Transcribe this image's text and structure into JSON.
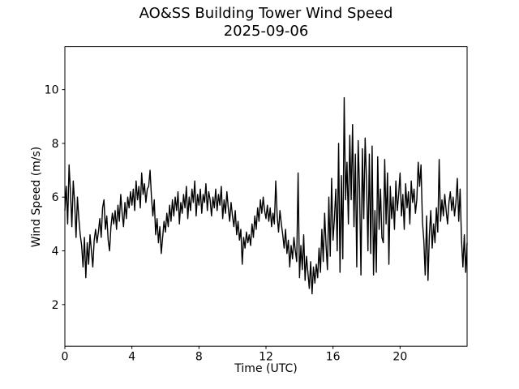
{
  "chart_data": {
    "type": "line",
    "title": "AO&SS Building Tower Wind Speed",
    "subtitle": "2025-09-06",
    "xlabel": "Time (UTC)",
    "ylabel": "Wind Speed (m/s)",
    "xlim": [
      0,
      24
    ],
    "ylim": [
      0.45,
      11.6
    ],
    "xticks": [
      0,
      4,
      8,
      12,
      16,
      20
    ],
    "yticks": [
      2,
      4,
      6,
      8,
      10
    ],
    "grid": false,
    "legend": "none",
    "line_color": "#000000",
    "line_width": 1.4,
    "background_color": "#ffffff",
    "text_color": "#000000",
    "series": [
      {
        "name": "wind-speed",
        "x_start": 0,
        "x_step": 0.0833333,
        "y": [
          5.5,
          6.4,
          5.0,
          7.2,
          6.2,
          4.9,
          6.6,
          5.8,
          4.5,
          6.0,
          5.2,
          4.6,
          4.2,
          3.4,
          4.5,
          3.0,
          4.3,
          3.5,
          4.6,
          4.0,
          3.4,
          4.4,
          4.8,
          4.3,
          4.7,
          5.2,
          4.5,
          5.6,
          5.9,
          4.8,
          5.3,
          4.4,
          4.0,
          4.9,
          5.4,
          5.0,
          5.5,
          4.8,
          5.7,
          5.1,
          6.1,
          5.4,
          4.9,
          5.8,
          5.2,
          6.0,
          5.6,
          6.2,
          5.7,
          6.3,
          5.5,
          6.6,
          5.9,
          6.4,
          5.6,
          6.9,
          6.1,
          6.5,
          5.8,
          6.3,
          6.4,
          7.0,
          6.0,
          5.3,
          5.9,
          4.6,
          5.2,
          4.3,
          4.9,
          3.9,
          4.5,
          5.1,
          4.7,
          5.4,
          4.9,
          5.7,
          5.1,
          5.9,
          5.3,
          6.0,
          5.5,
          6.2,
          5.0,
          5.8,
          5.4,
          6.1,
          5.6,
          6.4,
          5.2,
          6.0,
          5.5,
          6.3,
          5.8,
          6.6,
          5.3,
          6.1,
          5.7,
          6.3,
          5.4,
          6.1,
          5.8,
          6.5,
          5.5,
          6.2,
          5.9,
          5.3,
          6.0,
          5.6,
          6.3,
          5.5,
          6.1,
          5.7,
          6.4,
          5.2,
          5.9,
          5.4,
          6.2,
          5.6,
          5.1,
          5.8,
          5.3,
          4.9,
          5.5,
          4.6,
          5.1,
          4.4,
          4.8,
          3.5,
          4.5,
          4.1,
          4.7,
          4.3,
          4.6,
          4.2,
          5.0,
          4.5,
          5.3,
          4.8,
          5.6,
          5.1,
          5.9,
          5.4,
          6.0,
          5.5,
          5.2,
          5.7,
          5.1,
          5.6,
          4.9,
          5.4,
          5.0,
          6.6,
          5.3,
          4.7,
          5.5,
          5.0,
          4.6,
          4.1,
          4.8,
          3.9,
          4.4,
          3.4,
          4.2,
          3.7,
          4.5,
          4.0,
          3.6,
          6.9,
          3.0,
          4.2,
          3.3,
          4.6,
          2.9,
          3.8,
          3.2,
          2.6,
          3.6,
          2.4,
          3.4,
          2.8,
          3.5,
          3.0,
          4.1,
          3.2,
          4.8,
          3.6,
          5.4,
          4.2,
          3.3,
          6.0,
          3.8,
          6.7,
          4.4,
          5.2,
          6.3,
          4.0,
          8.0,
          3.2,
          6.8,
          3.7,
          9.7,
          5.9,
          7.3,
          5.0,
          8.3,
          5.9,
          8.7,
          4.9,
          7.6,
          3.4,
          8.1,
          6.3,
          3.1,
          7.8,
          5.2,
          8.2,
          6.6,
          4.0,
          7.6,
          3.9,
          7.9,
          3.1,
          5.5,
          3.2,
          7.5,
          4.8,
          6.3,
          4.5,
          4.3,
          7.4,
          5.0,
          6.9,
          3.5,
          6.4,
          5.2,
          6.0,
          4.8,
          6.6,
          5.5,
          6.1,
          6.9,
          5.3,
          6.1,
          4.8,
          6.5,
          5.6,
          6.2,
          5.0,
          6.6,
          5.8,
          6.3,
          5.4,
          5.9,
          7.3,
          6.4,
          7.2,
          5.1,
          4.4,
          3.1,
          5.3,
          2.9,
          4.6,
          5.5,
          4.1,
          5.0,
          4.3,
          5.6,
          4.7,
          7.4,
          5.1,
          5.9,
          5.3,
          6.1,
          5.5,
          5.0,
          5.8,
          6.2,
          5.5,
          6.0,
          5.3,
          5.8,
          6.7,
          5.1,
          6.3,
          4.4,
          3.4,
          4.6,
          3.2,
          4.3
        ]
      }
    ]
  }
}
